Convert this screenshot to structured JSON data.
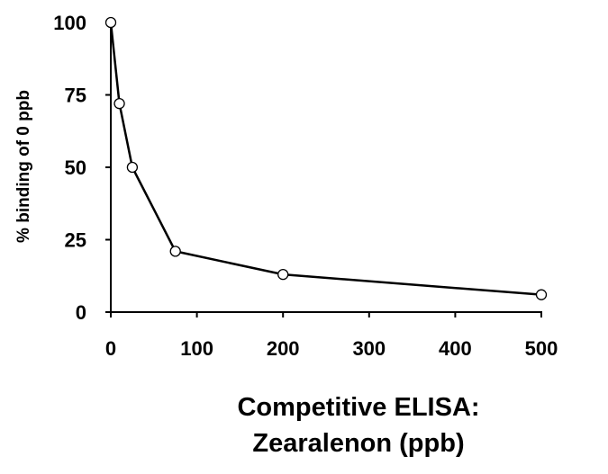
{
  "chart_data": {
    "type": "line",
    "title": "",
    "xlabel_lines": [
      "Competitive ELISA:",
      "Zearalenon (ppb)"
    ],
    "ylabel": "% binding of 0 ppb",
    "xlim": [
      0,
      500
    ],
    "ylim": [
      0,
      100
    ],
    "xticks": [
      0,
      100,
      200,
      300,
      400,
      500
    ],
    "yticks": [
      0,
      25,
      50,
      75,
      100
    ],
    "grid": false,
    "legend": "none",
    "marker": "open-circle",
    "line_color": "#000000",
    "series": [
      {
        "x": [
          0,
          10,
          25,
          75,
          200,
          500
        ],
        "y": [
          100,
          72,
          50,
          21,
          13,
          6
        ]
      }
    ]
  }
}
